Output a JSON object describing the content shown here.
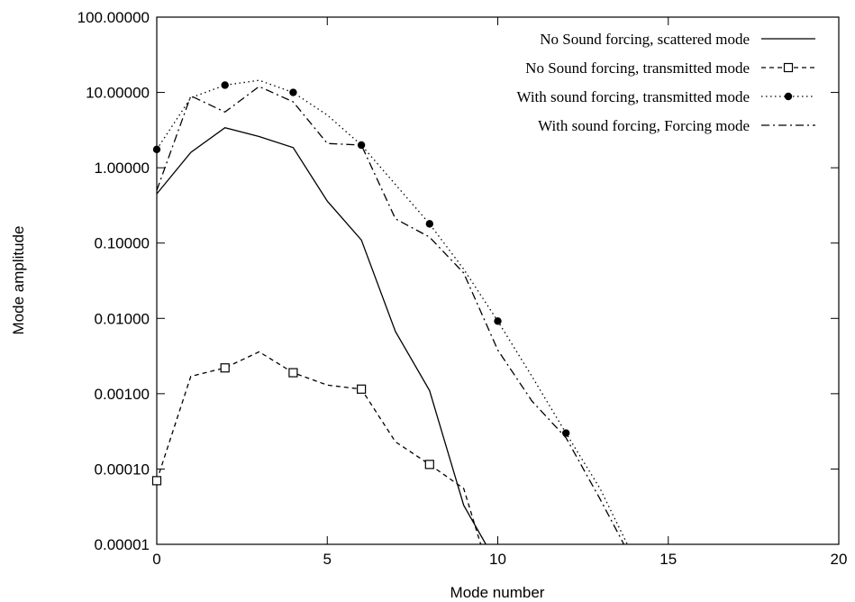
{
  "chart_data": {
    "type": "line",
    "title": "",
    "xlabel": "Mode number",
    "ylabel": "Mode amplitude",
    "xlim": [
      0,
      20
    ],
    "ylim": [
      1e-05,
      100
    ],
    "y_scale": "log",
    "x_ticks": [
      0,
      5,
      10,
      15,
      20
    ],
    "x_tick_labels": [
      "0",
      "5",
      "10",
      "15",
      "20"
    ],
    "y_ticks": [
      1e-05,
      0.0001,
      0.001,
      0.01,
      0.1,
      1,
      10,
      100
    ],
    "y_tick_labels": [
      "0.00001",
      "0.00010",
      "0.00100",
      "0.01000",
      "0.10000",
      "1.00000",
      "10.00000",
      "100.00000"
    ],
    "grid": false,
    "legend_position": "top-right",
    "series": [
      {
        "name": "No Sound forcing, scattered mode",
        "style": "solid",
        "marker": "none",
        "x": [
          0,
          1,
          2,
          3,
          4,
          5,
          6,
          7,
          8,
          9,
          9.65
        ],
        "y": [
          0.45,
          1.6,
          3.4,
          2.6,
          1.85,
          0.36,
          0.11,
          0.0067,
          0.0011,
          3.3e-05,
          1e-05
        ]
      },
      {
        "name": "No Sound forcing, transmitted mode",
        "style": "dashed",
        "marker": "open-square",
        "x": [
          0,
          1,
          2,
          3,
          4,
          5,
          6,
          7,
          8,
          9,
          9.5
        ],
        "y": [
          7e-05,
          0.0017,
          0.0022,
          0.0036,
          0.0019,
          0.0013,
          0.00115,
          0.00023,
          0.000115,
          5.5e-05,
          1e-05
        ]
      },
      {
        "name": "With sound forcing, transmitted mode",
        "style": "dotted",
        "marker": "filled-circle",
        "x": [
          0,
          1,
          2,
          3,
          4,
          5,
          6,
          7,
          8,
          9,
          10,
          11,
          12,
          13,
          13.8
        ],
        "y": [
          1.75,
          8.5,
          12.5,
          14.5,
          10.0,
          5.0,
          2.0,
          0.6,
          0.18,
          0.045,
          0.0092,
          0.0017,
          0.0003,
          5.5e-05,
          1e-05
        ]
      },
      {
        "name": "With sound forcing, Forcing mode",
        "style": "dashdot",
        "marker": "none",
        "x": [
          0,
          1,
          2,
          3,
          4,
          5,
          6,
          7,
          8,
          9,
          10,
          11,
          12,
          13,
          13.7
        ],
        "y": [
          0.5,
          9.0,
          5.5,
          12.0,
          7.5,
          2.1,
          2.0,
          0.21,
          0.12,
          0.04,
          0.0038,
          0.0008,
          0.00026,
          4e-05,
          1e-05
        ]
      }
    ],
    "marker_points": [
      {
        "series": 1,
        "x": [
          0,
          2,
          4,
          6,
          8
        ]
      },
      {
        "series": 2,
        "x": [
          0,
          2,
          4,
          6,
          8,
          10,
          12
        ]
      }
    ]
  }
}
